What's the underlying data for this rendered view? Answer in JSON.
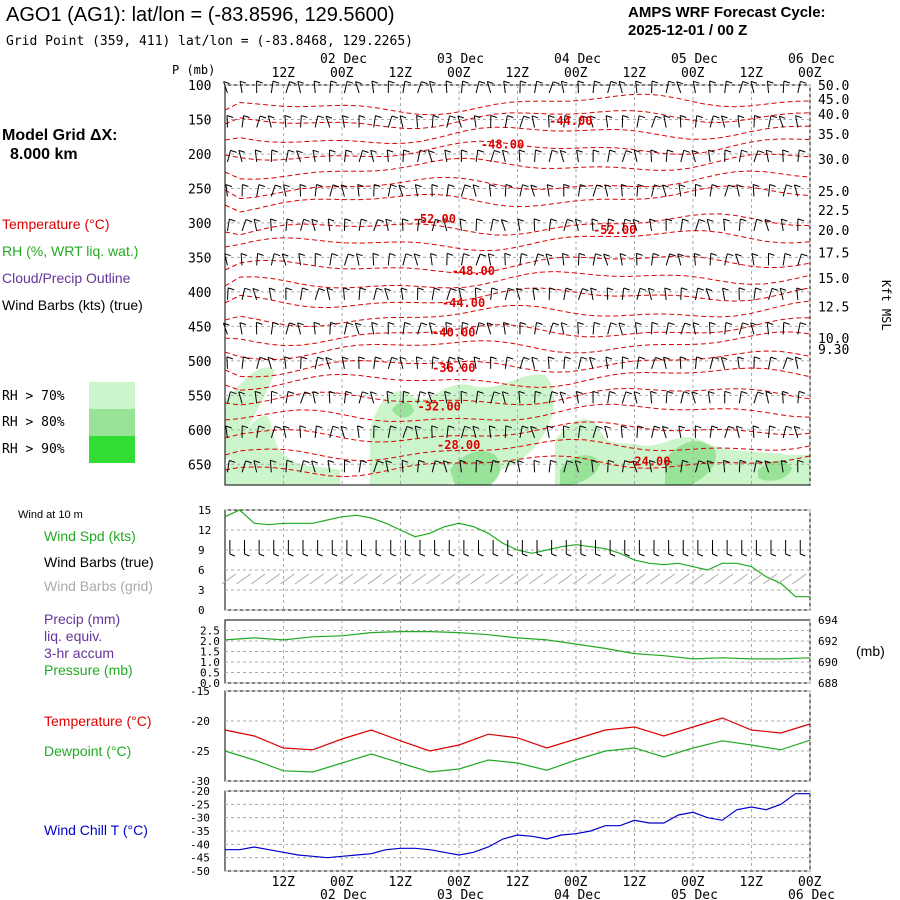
{
  "header": {
    "title": "AGO1 (AG1):  lat/lon = (-83.8596, 129.5600)",
    "subtitle": "Grid Point (359, 411) lat/lon = (-83.8468, 129.2265)",
    "cycle_line1": "AMPS WRF Forecast Cycle:",
    "cycle_line2": "2025-12-01 / 00  Z"
  },
  "grid_label": {
    "line1": "Model Grid ΔX:",
    "line2": "8.000 km"
  },
  "legend": {
    "temperature": "Temperature (°C)",
    "rh": "RH (%, WRT liq. wat.)",
    "cloud": "Cloud/Precip Outline",
    "wind": "Wind Barbs (kts) (true)",
    "rh70": "RH > 70%",
    "rh80": "RH > 80%",
    "rh90": "RH > 90%"
  },
  "colors": {
    "temperature": "#dd0000",
    "rh": "#22aa22",
    "cloud": "#663399",
    "rh70": "#ccf5cc",
    "rh80": "#99e399",
    "rh90": "#33dd33",
    "windchill": "#0000cc",
    "grid": "#aaaaaa"
  },
  "panel_labels": {
    "wind10": "Wind at 10 m",
    "wind_spd": "Wind Spd (kts)",
    "wind_barbs_true": "Wind Barbs (true)",
    "wind_barbs_grid": "Wind Barbs (grid)",
    "precip": "Precip (mm)",
    "liq": "liq. equiv.",
    "accum": "3-hr accum",
    "pressure": "Pressure (mb)",
    "pressure_unit": "(mb)",
    "temperature": "Temperature (°C)",
    "dewpoint": "Dewpoint (°C)",
    "windchill": "Wind Chill T (°C)",
    "p_axis": "P (mb)",
    "kft": "Kft MSL"
  },
  "chart_data": [
    {
      "type": "contour",
      "name": "profile",
      "xlim": [
        0,
        120
      ],
      "ylim": [
        100,
        680
      ],
      "time_ticks": [
        {
          "h": 12,
          "label": "12Z",
          "date": ""
        },
        {
          "h": 24,
          "label": "00Z",
          "date": "02 Dec"
        },
        {
          "h": 36,
          "label": "12Z",
          "date": ""
        },
        {
          "h": 48,
          "label": "00Z",
          "date": "03 Dec"
        },
        {
          "h": 60,
          "label": "12Z",
          "date": ""
        },
        {
          "h": 72,
          "label": "00Z",
          "date": "04 Dec"
        },
        {
          "h": 84,
          "label": "12Z",
          "date": ""
        },
        {
          "h": 96,
          "label": "00Z",
          "date": "05 Dec"
        },
        {
          "h": 108,
          "label": "12Z",
          "date": ""
        },
        {
          "h": 120,
          "label": "00Z",
          "date": "06 Dec"
        }
      ],
      "pressure_ticks": [
        100,
        150,
        200,
        250,
        300,
        350,
        400,
        450,
        500,
        550,
        600,
        650
      ],
      "height_ticks": [
        {
          "p": 100,
          "label": "50.0"
        },
        {
          "p": 120,
          "label": "45.0"
        },
        {
          "p": 142,
          "label": "40.0"
        },
        {
          "p": 171,
          "label": "35.0"
        },
        {
          "p": 207,
          "label": "30.0"
        },
        {
          "p": 254,
          "label": "25.0"
        },
        {
          "p": 281,
          "label": "22.5"
        },
        {
          "p": 310,
          "label": "20.0"
        },
        {
          "p": 343,
          "label": "17.5"
        },
        {
          "p": 380,
          "label": "15.0"
        },
        {
          "p": 421,
          "label": "12.5"
        },
        {
          "p": 467,
          "label": "10.0"
        },
        {
          "p": 483,
          "label": "9.30"
        }
      ],
      "temp_labels": [
        {
          "t": 71,
          "p": 152,
          "label": "-44.00"
        },
        {
          "t": 57,
          "p": 186,
          "label": "-48.00"
        },
        {
          "t": 43,
          "p": 294,
          "label": "-52.00"
        },
        {
          "t": 80,
          "p": 310,
          "label": "-52.00"
        },
        {
          "t": 51,
          "p": 370,
          "label": "-48.00"
        },
        {
          "t": 49,
          "p": 416,
          "label": "-44.00"
        },
        {
          "t": 47,
          "p": 459,
          "label": "-40.00"
        },
        {
          "t": 47,
          "p": 510,
          "label": "-36.00"
        },
        {
          "t": 44,
          "p": 566,
          "label": "-32.00"
        },
        {
          "t": 48,
          "p": 622,
          "label": "-28.00"
        },
        {
          "t": 87,
          "p": 646,
          "label": "-24.00"
        }
      ],
      "wind_levels": [
        100,
        150,
        200,
        250,
        300,
        350,
        400,
        450,
        500,
        550,
        600,
        650
      ]
    },
    {
      "type": "line",
      "name": "wind10",
      "ylim": [
        0,
        15
      ],
      "yticks": [
        0,
        3,
        6,
        9,
        12,
        15
      ],
      "series": [
        {
          "name": "Wind Spd (kts)",
          "x": [
            0,
            3,
            6,
            9,
            12,
            15,
            18,
            21,
            24,
            27,
            30,
            33,
            36,
            39,
            42,
            45,
            48,
            51,
            54,
            57,
            60,
            63,
            66,
            69,
            72,
            75,
            78,
            81,
            84,
            87,
            90,
            93,
            96,
            99,
            102,
            105,
            108,
            111,
            114,
            117,
            120
          ],
          "values": [
            14,
            15,
            13,
            12.8,
            13,
            13,
            13,
            13.5,
            14,
            14.2,
            13.8,
            13,
            12,
            11,
            11.5,
            12.5,
            13,
            12.5,
            11.5,
            10,
            9,
            8.5,
            9,
            9.5,
            9.8,
            9.5,
            9.2,
            8.5,
            7.5,
            7,
            6.8,
            7,
            6.5,
            6,
            7,
            7,
            6.5,
            5,
            4,
            2,
            2
          ]
        }
      ]
    },
    {
      "type": "line",
      "name": "pressure",
      "ylim": [
        0,
        3.0
      ],
      "yticks": [
        0.0,
        0.5,
        1.0,
        1.5,
        2.0,
        2.5
      ],
      "y2lim": [
        688,
        694
      ],
      "y2ticks": [
        688,
        690,
        692,
        694
      ],
      "series": [
        {
          "name": "Pressure (mb)",
          "x": [
            0,
            6,
            12,
            18,
            24,
            30,
            36,
            42,
            48,
            54,
            60,
            66,
            72,
            78,
            84,
            90,
            96,
            102,
            108,
            114,
            120
          ],
          "values": [
            692.1,
            692.3,
            692.1,
            692.4,
            692.5,
            692.8,
            692.9,
            692.9,
            692.8,
            692.6,
            692.3,
            692.1,
            691.7,
            691.3,
            690.8,
            690.6,
            690.3,
            690.4,
            690.3,
            690.3,
            690.4
          ]
        }
      ]
    },
    {
      "type": "line",
      "name": "temperature",
      "ylim": [
        -30,
        -15
      ],
      "yticks": [
        -30,
        -25,
        -20,
        -15
      ],
      "series": [
        {
          "name": "Temperature",
          "x": [
            0,
            6,
            12,
            18,
            24,
            30,
            36,
            42,
            48,
            54,
            60,
            66,
            72,
            78,
            84,
            90,
            96,
            102,
            108,
            114,
            120
          ],
          "values": [
            -21.5,
            -22.5,
            -24.5,
            -24.8,
            -23,
            -21.5,
            -23.3,
            -25,
            -24,
            -22.2,
            -22.8,
            -24.5,
            -23,
            -21.5,
            -21,
            -22.5,
            -21,
            -19.5,
            -21.5,
            -22,
            -20.5
          ]
        },
        {
          "name": "Dewpoint",
          "x": [
            0,
            6,
            12,
            18,
            24,
            30,
            36,
            42,
            48,
            54,
            60,
            66,
            72,
            78,
            84,
            90,
            96,
            102,
            108,
            114,
            120
          ],
          "values": [
            -25,
            -26.5,
            -28.3,
            -28.5,
            -27,
            -25.5,
            -27,
            -28.5,
            -28,
            -26.5,
            -27,
            -28.2,
            -26.5,
            -25,
            -24.5,
            -26,
            -24.5,
            -23.3,
            -24,
            -24.8,
            -23.2
          ]
        }
      ]
    },
    {
      "type": "line",
      "name": "windchill",
      "ylim": [
        -50,
        -20
      ],
      "yticks": [
        -50,
        -45,
        -40,
        -35,
        -30,
        -25,
        -20
      ],
      "series": [
        {
          "name": "Wind Chill T",
          "x": [
            0,
            3,
            6,
            9,
            12,
            15,
            18,
            21,
            24,
            27,
            30,
            33,
            36,
            39,
            42,
            45,
            48,
            51,
            54,
            57,
            60,
            63,
            66,
            69,
            72,
            75,
            78,
            81,
            84,
            87,
            90,
            93,
            96,
            99,
            102,
            105,
            108,
            111,
            114,
            117,
            120
          ],
          "values": [
            -42,
            -42,
            -41,
            -42,
            -43,
            -44,
            -44.5,
            -45,
            -44.5,
            -44,
            -43.5,
            -42,
            -41.5,
            -41.5,
            -42,
            -43,
            -44,
            -43,
            -41,
            -38,
            -36.5,
            -37,
            -38,
            -36.5,
            -36,
            -35,
            -33,
            -33,
            -31,
            -32,
            -32,
            -29,
            -28,
            -30,
            -31,
            -27,
            -26,
            -27,
            -25,
            -21,
            -21
          ]
        }
      ]
    }
  ]
}
